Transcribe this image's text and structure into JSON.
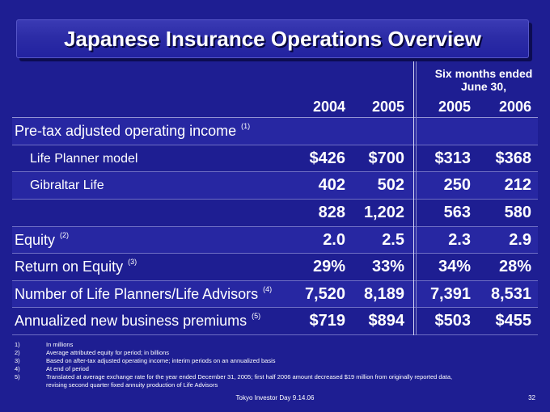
{
  "slide": {
    "title": "Japanese Insurance Operations Overview",
    "colors": {
      "background": "#1E1E92",
      "banner": "#2C2CA6",
      "band": "#2727A2",
      "text": "#FFFFFF"
    }
  },
  "table": {
    "period_header": [
      "Six months ended",
      "June 30,"
    ],
    "columns": [
      "2004",
      "2005",
      "2005",
      "2006"
    ],
    "rows": [
      {
        "label": "Pre-tax adjusted operating income",
        "note": "(1)"
      },
      {
        "label": "Life Planner model",
        "values": [
          "$426",
          "$700",
          "$313",
          "$368"
        ]
      },
      {
        "label": "Gibraltar Life",
        "values": [
          "402",
          "502",
          "250",
          "212"
        ]
      },
      {
        "values": [
          "828",
          "1,202",
          "563",
          "580"
        ]
      },
      {
        "label": "Equity",
        "note": "(2)",
        "values": [
          "2.0",
          "2.5",
          "2.3",
          "2.9"
        ]
      },
      {
        "label": "Return on Equity",
        "note": "(3)",
        "values": [
          "29%",
          "33%",
          "34%",
          "28%"
        ]
      },
      {
        "label": "Number of Life Planners/Life Advisors",
        "note": "(4)",
        "values": [
          "7,520",
          "8,189",
          "7,391",
          "8,531"
        ]
      },
      {
        "label": "Annualized new business premiums",
        "note": "(5)",
        "values": [
          "$719",
          "$894",
          "$503",
          "$455"
        ]
      }
    ]
  },
  "footnotes": [
    {
      "number": "1)",
      "lines": [
        "In millions"
      ]
    },
    {
      "number": "2)",
      "lines": [
        "Average attributed equity for period; in billions"
      ]
    },
    {
      "number": "3)",
      "lines": [
        "Based on after-tax adjusted operating income; interim periods on an annualized basis"
      ]
    },
    {
      "number": "4)",
      "lines": [
        "At end of period"
      ]
    },
    {
      "number": "5)",
      "lines": [
        "Translated at average exchange rate for the year ended December 31, 2005; first half 2006 amount decreased $19 million from originally reported data,",
        "revising second quarter fixed annuity production of Life Advisors"
      ]
    }
  ],
  "footer": {
    "event": "Tokyo Investor Day 9.14.06",
    "page": "32"
  }
}
